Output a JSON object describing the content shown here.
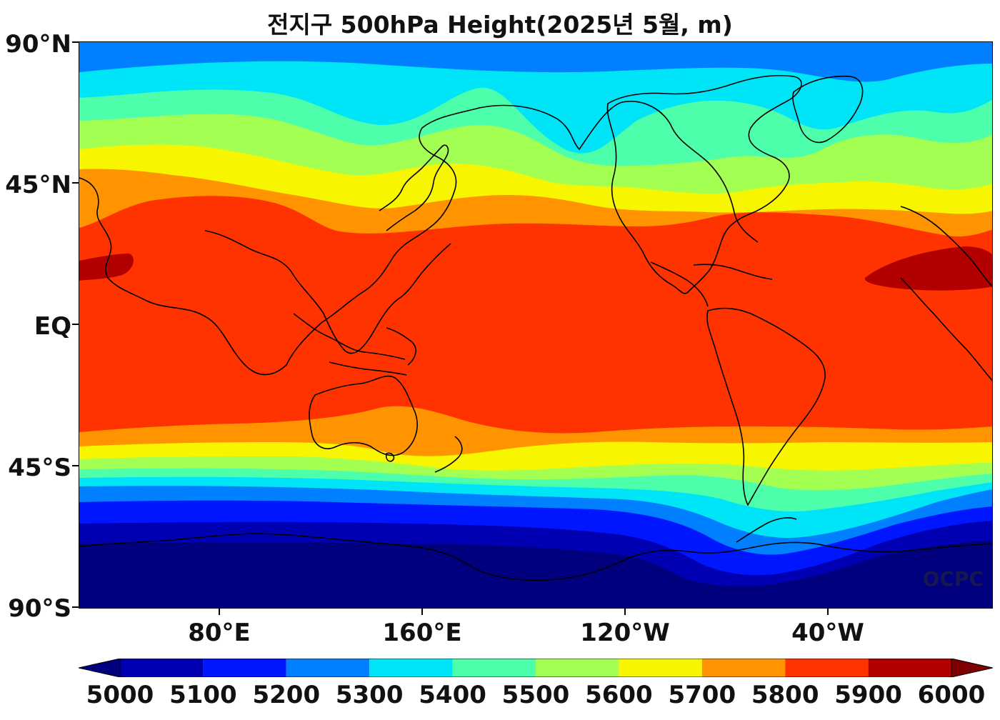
{
  "title": "전지구 500hPa Height(2025년 5월, m)",
  "watermark": "OCPC",
  "axes": {
    "y_ticks": [
      "90°N",
      "45°N",
      "EQ",
      "45°S",
      "90°S"
    ],
    "x_ticks": [
      "80°E",
      "160°E",
      "120°W",
      "40°W"
    ]
  },
  "colorbar": {
    "labels": [
      "5000",
      "5100",
      "5200",
      "5300",
      "5400",
      "5500",
      "5600",
      "5700",
      "5800",
      "5900",
      "6000"
    ],
    "colors": [
      "#00007f",
      "#0000b2",
      "#0016ff",
      "#0080ff",
      "#00e4f8",
      "#4dffaa",
      "#a4ff53",
      "#f8f500",
      "#ff9400",
      "#ff3300",
      "#b20000",
      "#7f0000"
    ]
  },
  "map_colors": {
    "band_5000": "#00007f",
    "band_5100": "#0000b2",
    "band_5200": "#0016ff",
    "band_5300": "#0080ff",
    "band_5400": "#00e4f8",
    "band_5500": "#4dffaa",
    "band_5600": "#a4ff53",
    "band_5700": "#f8f500",
    "band_5800": "#ff9400",
    "band_5900": "#ff3300",
    "band_6000": "#b20000",
    "coastline": "#000000"
  }
}
